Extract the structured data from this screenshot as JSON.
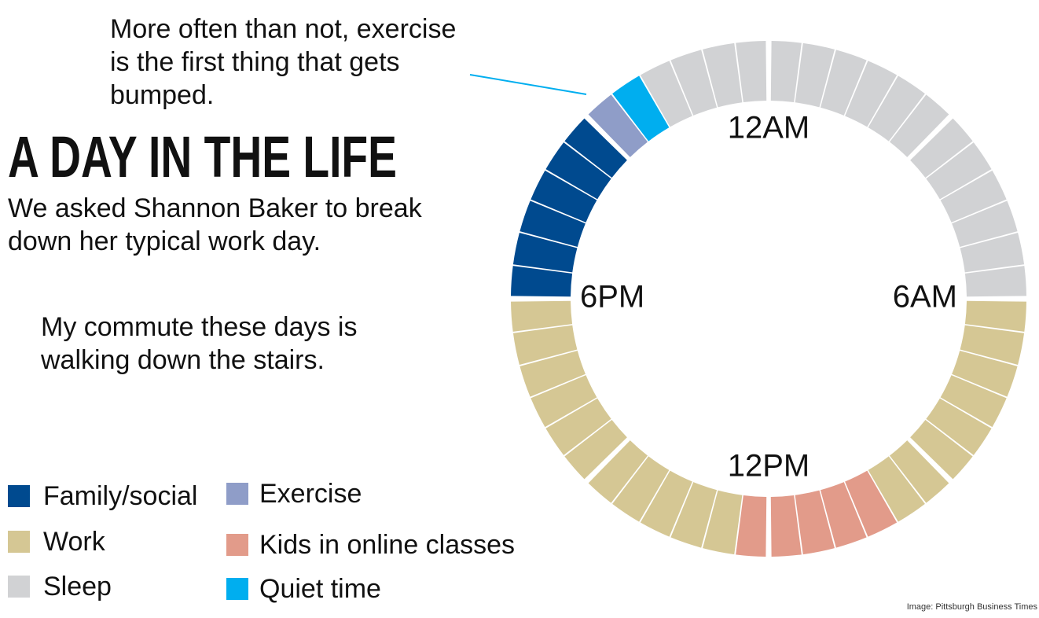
{
  "chart_data": {
    "type": "clock",
    "title": "A DAY IN THE LIFE",
    "subtitle": [
      "We asked Shannon Baker to break",
      "down her typical work day."
    ],
    "annotations": [
      {
        "lines": [
          "More often than not, exercise",
          "is the first thing that gets",
          "bumped."
        ]
      },
      {
        "lines": [
          "My commute these days is",
          "walking down the stairs."
        ]
      }
    ],
    "source": "Image: Pittsburgh Business Times",
    "xlim": [
      0,
      24
    ],
    "xticks": [
      {
        "value": 0,
        "label": "12AM"
      },
      {
        "value": 6,
        "label": "6AM"
      },
      {
        "value": 12,
        "label": "12PM"
      },
      {
        "value": 18,
        "label": "6PM"
      }
    ],
    "series": [
      {
        "name": "Family/social",
        "color": "#004a8f",
        "intervals": [
          [
            18,
            21
          ]
        ]
      },
      {
        "name": "Work",
        "color": "#d5c794",
        "intervals": [
          [
            6,
            10
          ],
          [
            12.5,
            18
          ]
        ]
      },
      {
        "name": "Sleep",
        "color": "#d1d2d4",
        "intervals": [
          [
            0,
            6
          ],
          [
            22,
            24
          ]
        ]
      },
      {
        "name": "Exercise",
        "color": "#8f9dc8",
        "intervals": [
          [
            21,
            21.5
          ]
        ]
      },
      {
        "name": "Kids in online classes",
        "color": "#e29b8a",
        "intervals": [
          [
            10,
            12.5
          ]
        ]
      },
      {
        "name": "Quiet time",
        "color": "#00aeef",
        "intervals": [
          [
            21.5,
            22
          ]
        ]
      }
    ]
  }
}
